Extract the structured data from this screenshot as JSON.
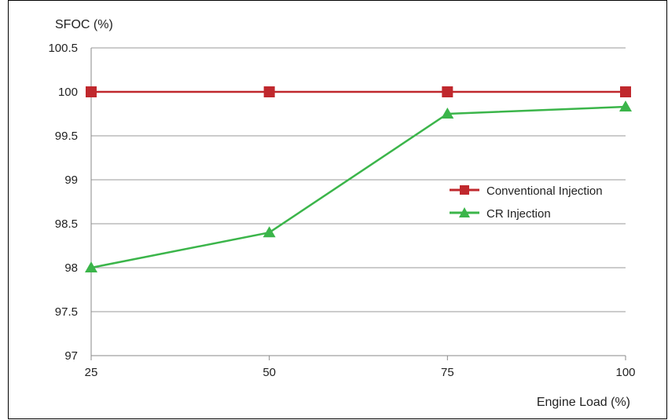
{
  "chart_data": {
    "type": "line",
    "title": "",
    "ylabel": "SFOC (%)",
    "xlabel": "Engine Load (%)",
    "x": [
      25,
      50,
      75,
      100
    ],
    "x_tick_labels": [
      "25",
      "50",
      "75",
      "100"
    ],
    "y_tick_labels": [
      "97",
      "97.5",
      "98",
      "98.5",
      "99",
      "99.5",
      "100",
      "100.5"
    ],
    "ylim": [
      97,
      100.5
    ],
    "grid": "horizontal",
    "legend_position": "right-center",
    "series": [
      {
        "name": "Conventional Injection",
        "values": [
          100,
          100,
          100,
          100
        ],
        "color": "#c0282d",
        "marker": "square"
      },
      {
        "name": "CR Injection",
        "values": [
          98.0,
          98.4,
          99.75,
          99.83
        ],
        "color": "#3bb54a",
        "marker": "triangle"
      }
    ]
  }
}
